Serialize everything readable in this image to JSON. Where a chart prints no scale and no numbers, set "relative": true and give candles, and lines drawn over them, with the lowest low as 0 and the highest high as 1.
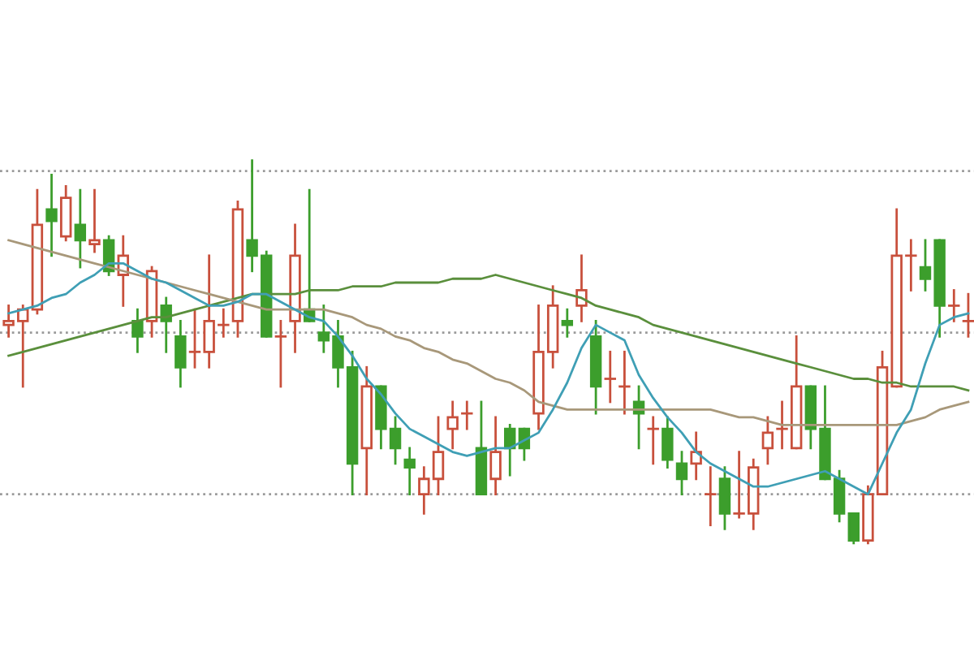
{
  "chart_data": {
    "type": "candlestick",
    "relative": true,
    "categories": [
      null,
      null,
      null,
      null,
      null,
      null,
      null,
      null,
      null,
      null,
      null,
      null,
      null,
      null,
      null,
      null,
      null,
      null,
      null,
      null,
      null,
      null,
      null,
      null,
      null,
      null,
      null,
      null,
      null,
      null,
      null,
      null,
      null,
      null,
      null,
      null,
      null,
      null,
      null,
      null,
      null,
      null,
      null,
      null,
      null,
      null,
      null,
      null,
      null,
      null,
      null,
      null,
      null,
      null,
      null,
      null,
      null,
      null,
      null,
      null,
      null,
      null,
      null,
      null,
      null,
      null,
      null,
      null
    ],
    "ohlc": [
      [
        0.57,
        0.62,
        0.54,
        0.58
      ],
      [
        0.58,
        0.62,
        0.41,
        0.61
      ],
      [
        0.61,
        0.92,
        0.6,
        0.83
      ],
      [
        0.87,
        0.96,
        0.75,
        0.84
      ],
      [
        0.8,
        0.93,
        0.79,
        0.9
      ],
      [
        0.83,
        0.92,
        0.72,
        0.79
      ],
      [
        0.78,
        0.92,
        0.76,
        0.79
      ],
      [
        0.79,
        0.8,
        0.7,
        0.71
      ],
      [
        0.7,
        0.8,
        0.62,
        0.75
      ],
      [
        0.58,
        0.61,
        0.5,
        0.54
      ],
      [
        0.58,
        0.72,
        0.54,
        0.71
      ],
      [
        0.62,
        0.64,
        0.5,
        0.58
      ],
      [
        0.54,
        0.58,
        0.41,
        0.46
      ],
      [
        0.5,
        0.61,
        0.46,
        0.5
      ],
      [
        0.5,
        0.75,
        0.46,
        0.58
      ],
      [
        0.57,
        0.61,
        0.54,
        0.57
      ],
      [
        0.58,
        0.89,
        0.54,
        0.87
      ],
      [
        0.79,
        1,
        0.71,
        0.75
      ],
      [
        0.75,
        0.76,
        0.54,
        0.54
      ],
      [
        0.54,
        0.58,
        0.41,
        0.54
      ],
      [
        0.58,
        0.83,
        0.5,
        0.75
      ],
      [
        0.61,
        0.92,
        0.58,
        0.58
      ],
      [
        0.55,
        0.62,
        0.5,
        0.53
      ],
      [
        0.54,
        0.58,
        0.41,
        0.46
      ],
      [
        0.46,
        0.5,
        0.13,
        0.21
      ],
      [
        0.25,
        0.46,
        0.13,
        0.41
      ],
      [
        0.41,
        0.41,
        0.25,
        0.3
      ],
      [
        0.3,
        0.33,
        0.21,
        0.25
      ],
      [
        0.22,
        0.25,
        0.13,
        0.2
      ],
      [
        0.13,
        0.2,
        0.08,
        0.17
      ],
      [
        0.17,
        0.33,
        0.13,
        0.24
      ],
      [
        0.3,
        0.37,
        0.25,
        0.33
      ],
      [
        0.34,
        0.37,
        0.3,
        0.34
      ],
      [
        0.25,
        0.37,
        0.13,
        0.13
      ],
      [
        0.17,
        0.33,
        0.13,
        0.24
      ],
      [
        0.3,
        0.31,
        0.18,
        0.25
      ],
      [
        0.3,
        0.3,
        0.22,
        0.25
      ],
      [
        0.34,
        0.62,
        0.3,
        0.5
      ],
      [
        0.5,
        0.67,
        0.46,
        0.62
      ],
      [
        0.58,
        0.61,
        0.54,
        0.57
      ],
      [
        0.62,
        0.75,
        0.58,
        0.66
      ],
      [
        0.54,
        0.58,
        0.34,
        0.41
      ],
      [
        0.43,
        0.5,
        0.37,
        0.43
      ],
      [
        0.41,
        0.5,
        0.34,
        0.41
      ],
      [
        0.37,
        0.41,
        0.25,
        0.34
      ],
      [
        0.3,
        0.33,
        0.21,
        0.3
      ],
      [
        0.3,
        0.33,
        0.2,
        0.22
      ],
      [
        0.21,
        0.24,
        0.13,
        0.17
      ],
      [
        0.21,
        0.29,
        0.17,
        0.24
      ],
      [
        0.13,
        0.2,
        0.05,
        0.13
      ],
      [
        0.17,
        0.2,
        0.04,
        0.08
      ],
      [
        0.08,
        0.24,
        0.07,
        0.08
      ],
      [
        0.08,
        0.22,
        0.04,
        0.2
      ],
      [
        0.25,
        0.33,
        0.21,
        0.29
      ],
      [
        0.3,
        0.37,
        0.25,
        0.3
      ],
      [
        0.25,
        0.54,
        0.25,
        0.41
      ],
      [
        0.41,
        0.41,
        0.25,
        0.3
      ],
      [
        0.3,
        0.41,
        0.17,
        0.17
      ],
      [
        0.17,
        0.19,
        0.06,
        0.08
      ],
      [
        0.08,
        0.08,
        0,
        0.01
      ],
      [
        0.01,
        0.15,
        0,
        0.13
      ],
      [
        0.13,
        0.5,
        0.13,
        0.46
      ],
      [
        0.41,
        0.87,
        0.41,
        0.75
      ],
      [
        0.75,
        0.79,
        0.66,
        0.75
      ],
      [
        0.72,
        0.79,
        0.66,
        0.69
      ],
      [
        0.79,
        0.79,
        0.54,
        0.62
      ],
      [
        0.62,
        0.66,
        0.58,
        0.62
      ],
      [
        0.58,
        0.65,
        0.54,
        0.58
      ]
    ],
    "colors": [
      "#c8503c",
      "#c8503c",
      "#c8503c",
      "#3c9e2c",
      "#c8503c",
      "#3c9e2c",
      "#c8503c",
      "#3c9e2c",
      "#c8503c",
      "#3c9e2c",
      "#c8503c",
      "#3c9e2c",
      "#3c9e2c",
      "#c8503c",
      "#c8503c",
      "#c8503c",
      "#c8503c",
      "#3c9e2c",
      "#3c9e2c",
      "#c8503c",
      "#c8503c",
      "#3c9e2c",
      "#3c9e2c",
      "#3c9e2c",
      "#3c9e2c",
      "#c8503c",
      "#3c9e2c",
      "#3c9e2c",
      "#3c9e2c",
      "#c8503c",
      "#c8503c",
      "#c8503c",
      "#c8503c",
      "#3c9e2c",
      "#c8503c",
      "#3c9e2c",
      "#3c9e2c",
      "#c8503c",
      "#c8503c",
      "#3c9e2c",
      "#c8503c",
      "#3c9e2c",
      "#c8503c",
      "#c8503c",
      "#3c9e2c",
      "#c8503c",
      "#3c9e2c",
      "#3c9e2c",
      "#c8503c",
      "#c8503c",
      "#3c9e2c",
      "#c8503c",
      "#c8503c",
      "#c8503c",
      "#c8503c",
      "#c8503c",
      "#3c9e2c",
      "#3c9e2c",
      "#3c9e2c",
      "#3c9e2c",
      "#c8503c",
      "#c8503c",
      "#c8503c",
      "#c8503c",
      "#3c9e2c",
      "#3c9e2c",
      "#c8503c",
      "#c8503c"
    ],
    "series": [
      {
        "type": "line",
        "color": "#5a8f3c",
        "values": [
          0.49,
          0.5,
          0.51,
          0.52,
          0.53,
          0.54,
          0.55,
          0.56,
          0.57,
          0.58,
          0.59,
          0.59,
          0.6,
          0.61,
          0.62,
          0.63,
          0.64,
          0.65,
          0.65,
          0.65,
          0.65,
          0.66,
          0.66,
          0.66,
          0.67,
          0.67,
          0.67,
          0.68,
          0.68,
          0.68,
          0.68,
          0.69,
          0.69,
          0.69,
          0.7,
          0.69,
          0.68,
          0.67,
          0.66,
          0.65,
          0.64,
          0.62,
          0.61,
          0.6,
          0.59,
          0.57,
          0.56,
          0.55,
          0.54,
          0.53,
          0.52,
          0.51,
          0.5,
          0.49,
          0.48,
          0.47,
          0.46,
          0.45,
          0.44,
          0.43,
          0.43,
          0.42,
          0.42,
          0.41,
          0.41,
          0.41,
          0.41,
          0.4
        ]
      },
      {
        "type": "line",
        "color": "#a8987a",
        "values": [
          0.79,
          0.78,
          0.77,
          0.76,
          0.75,
          0.74,
          0.73,
          0.72,
          0.71,
          0.7,
          0.69,
          0.68,
          0.67,
          0.66,
          0.65,
          0.64,
          0.63,
          0.62,
          0.61,
          0.61,
          0.61,
          0.61,
          0.61,
          0.6,
          0.59,
          0.57,
          0.56,
          0.54,
          0.53,
          0.51,
          0.5,
          0.48,
          0.47,
          0.45,
          0.43,
          0.42,
          0.4,
          0.37,
          0.36,
          0.35,
          0.35,
          0.35,
          0.35,
          0.35,
          0.35,
          0.35,
          0.35,
          0.35,
          0.35,
          0.35,
          0.34,
          0.33,
          0.33,
          0.32,
          0.31,
          0.31,
          0.31,
          0.31,
          0.31,
          0.31,
          0.31,
          0.31,
          0.31,
          0.32,
          0.33,
          0.35,
          0.36,
          0.37
        ]
      },
      {
        "type": "line",
        "color": "#3f9fb5",
        "values": [
          0.6,
          0.61,
          0.62,
          0.64,
          0.65,
          0.68,
          0.7,
          0.73,
          0.73,
          0.71,
          0.69,
          0.68,
          0.66,
          0.64,
          0.62,
          0.62,
          0.63,
          0.65,
          0.65,
          0.63,
          0.61,
          0.59,
          0.58,
          0.54,
          0.49,
          0.43,
          0.39,
          0.34,
          0.3,
          0.28,
          0.26,
          0.24,
          0.23,
          0.24,
          0.25,
          0.25,
          0.27,
          0.29,
          0.35,
          0.42,
          0.51,
          0.57,
          0.55,
          0.53,
          0.44,
          0.38,
          0.33,
          0.29,
          0.24,
          0.21,
          0.19,
          0.17,
          0.15,
          0.15,
          0.16,
          0.17,
          0.18,
          0.19,
          0.17,
          0.15,
          0.13,
          0.21,
          0.29,
          0.35,
          0.47,
          0.57,
          0.59,
          0.6
        ]
      }
    ],
    "ref_lines": [
      {
        "axis": "y",
        "value": 0.97,
        "color": "#9a9a9a",
        "line_style": "dotted"
      },
      {
        "axis": "y",
        "value": 0.55,
        "color": "#9a9a9a",
        "line_style": "dotted"
      },
      {
        "axis": "y",
        "value": 0.13,
        "color": "#9a9a9a",
        "line_style": "dotted"
      }
    ]
  }
}
